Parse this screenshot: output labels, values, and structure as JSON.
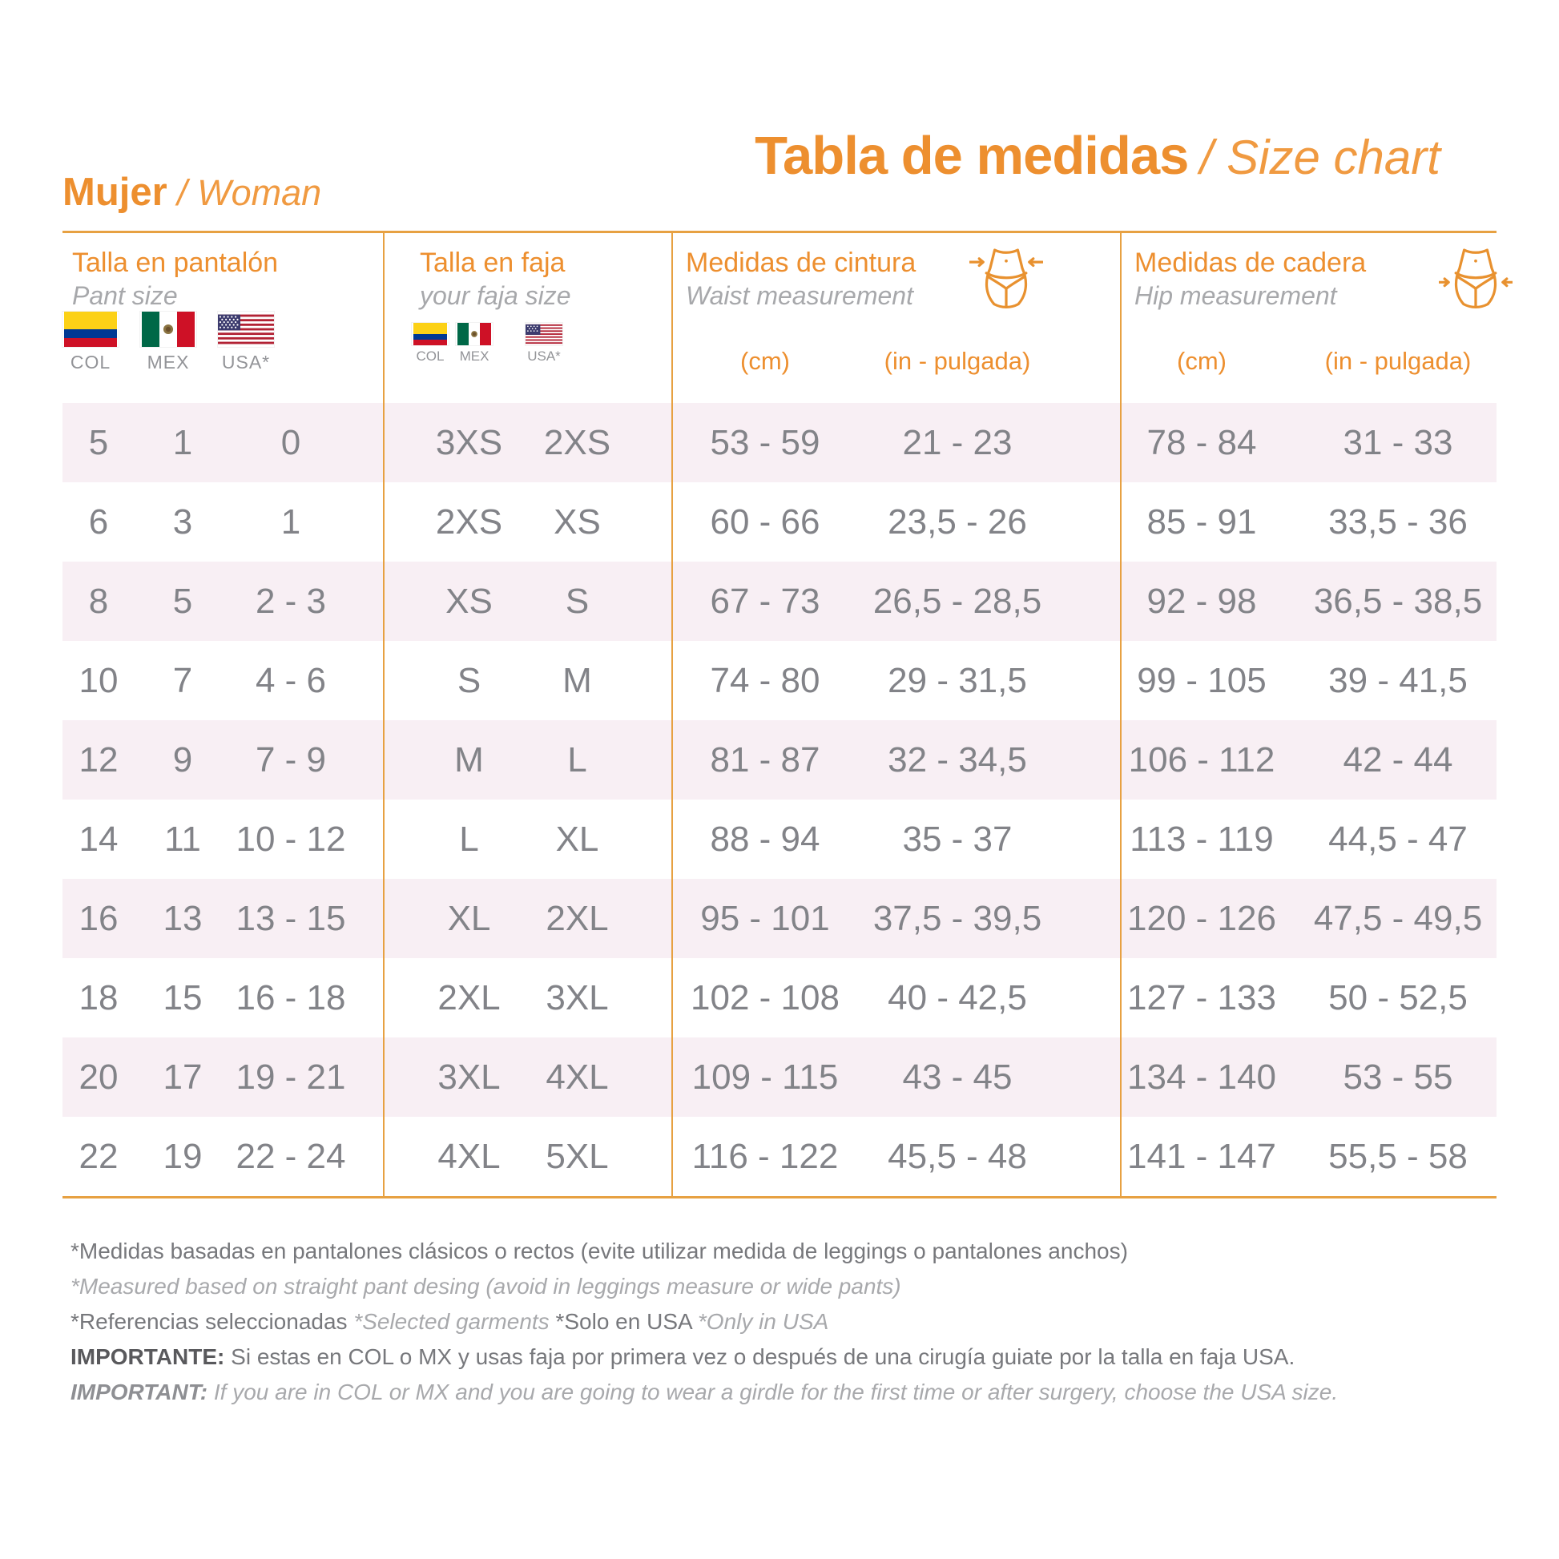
{
  "header": {
    "left_title": "Mujer",
    "left_subtitle": "/ Woman",
    "main_title": "Tabla de medidas",
    "main_subtitle": "/ Size chart"
  },
  "groups": {
    "pant": {
      "title": "Talla en pantalón",
      "subtitle": "Pant size",
      "flag_labels": [
        "COL",
        "MEX",
        "USA*"
      ]
    },
    "faja": {
      "title": "Talla en faja",
      "subtitle": "your faja size",
      "flag_labels": [
        "COL",
        "MEX",
        "USA*"
      ]
    },
    "waist": {
      "title": "Medidas de cintura",
      "subtitle": "Waist measurement",
      "unit_cm": "(cm)",
      "unit_in": "(in - pulgada)"
    },
    "hip": {
      "title": "Medidas de cadera",
      "subtitle": "Hip measurement",
      "unit_cm": "(cm)",
      "unit_in": "(in - pulgada)"
    }
  },
  "rows": [
    {
      "pant": [
        "5",
        "1",
        "0"
      ],
      "faja": [
        "3XS",
        "2XS"
      ],
      "waist_cm": "53 - 59",
      "waist_in": "21 - 23",
      "hip_cm": "78 - 84",
      "hip_in": "31 - 33"
    },
    {
      "pant": [
        "6",
        "3",
        "1"
      ],
      "faja": [
        "2XS",
        "XS"
      ],
      "waist_cm": "60 - 66",
      "waist_in": "23,5 - 26",
      "hip_cm": "85 - 91",
      "hip_in": "33,5 - 36"
    },
    {
      "pant": [
        "8",
        "5",
        "2 - 3"
      ],
      "faja": [
        "XS",
        "S"
      ],
      "waist_cm": "67 - 73",
      "waist_in": "26,5 - 28,5",
      "hip_cm": "92 - 98",
      "hip_in": "36,5 - 38,5"
    },
    {
      "pant": [
        "10",
        "7",
        "4 - 6"
      ],
      "faja": [
        "S",
        "M"
      ],
      "waist_cm": "74 - 80",
      "waist_in": "29 - 31,5",
      "hip_cm": "99 - 105",
      "hip_in": "39 - 41,5"
    },
    {
      "pant": [
        "12",
        "9",
        "7 - 9"
      ],
      "faja": [
        "M",
        "L"
      ],
      "waist_cm": "81 - 87",
      "waist_in": "32 - 34,5",
      "hip_cm": "106 - 112",
      "hip_in": "42 - 44"
    },
    {
      "pant": [
        "14",
        "11",
        "10 - 12"
      ],
      "faja": [
        "L",
        "XL"
      ],
      "waist_cm": "88 - 94",
      "waist_in": "35 - 37",
      "hip_cm": "113 - 119",
      "hip_in": "44,5 - 47"
    },
    {
      "pant": [
        "16",
        "13",
        "13 - 15"
      ],
      "faja": [
        "XL",
        "2XL"
      ],
      "waist_cm": "95 - 101",
      "waist_in": "37,5 - 39,5",
      "hip_cm": "120 - 126",
      "hip_in": "47,5 - 49,5"
    },
    {
      "pant": [
        "18",
        "15",
        "16 - 18"
      ],
      "faja": [
        "2XL",
        "3XL"
      ],
      "waist_cm": "102 - 108",
      "waist_in": "40 - 42,5",
      "hip_cm": "127 - 133",
      "hip_in": "50 - 52,5"
    },
    {
      "pant": [
        "20",
        "17",
        "19 - 21"
      ],
      "faja": [
        "3XL",
        "4XL"
      ],
      "waist_cm": "109 - 115",
      "waist_in": "43 - 45",
      "hip_cm": "134 - 140",
      "hip_in": "53 - 55"
    },
    {
      "pant": [
        "22",
        "19",
        "22 - 24"
      ],
      "faja": [
        "4XL",
        "5XL"
      ],
      "waist_cm": "116 - 122",
      "waist_in": "45,5 - 48",
      "hip_cm": "141 - 147",
      "hip_in": "55,5 - 58"
    }
  ],
  "footnotes": {
    "note1_es": "*Medidas basadas en pantalones clásicos o rectos (evite utilizar medida de leggings o pantalones anchos)",
    "note1_en": "*Measured based on straight pant desing (avoid in leggings measure or wide pants)",
    "note2_segments": [
      {
        "text": "*Referencias seleccionadas ",
        "style": "es"
      },
      {
        "text": "*Selected garments ",
        "style": "en"
      },
      {
        "text": "*Solo en USA ",
        "style": "es"
      },
      {
        "text": "*Only in USA",
        "style": "en"
      }
    ],
    "important_es_label": "IMPORTANTE:",
    "important_es": " Si estas en COL o MX y usas faja por primera vez o después de una cirugía guiate por la talla en faja USA.",
    "important_en_label": "IMPORTANT:",
    "important_en": " If you are in COL or MX and you are going to wear a girdle for the first time or after surgery, choose the USA size."
  },
  "colors": {
    "accent_orange": "#ED8F2F",
    "line_orange": "#E7A142",
    "row_pink": "#F8EFF4",
    "cell_gray": "#828388",
    "muted_gray": "#A8A9AC"
  }
}
